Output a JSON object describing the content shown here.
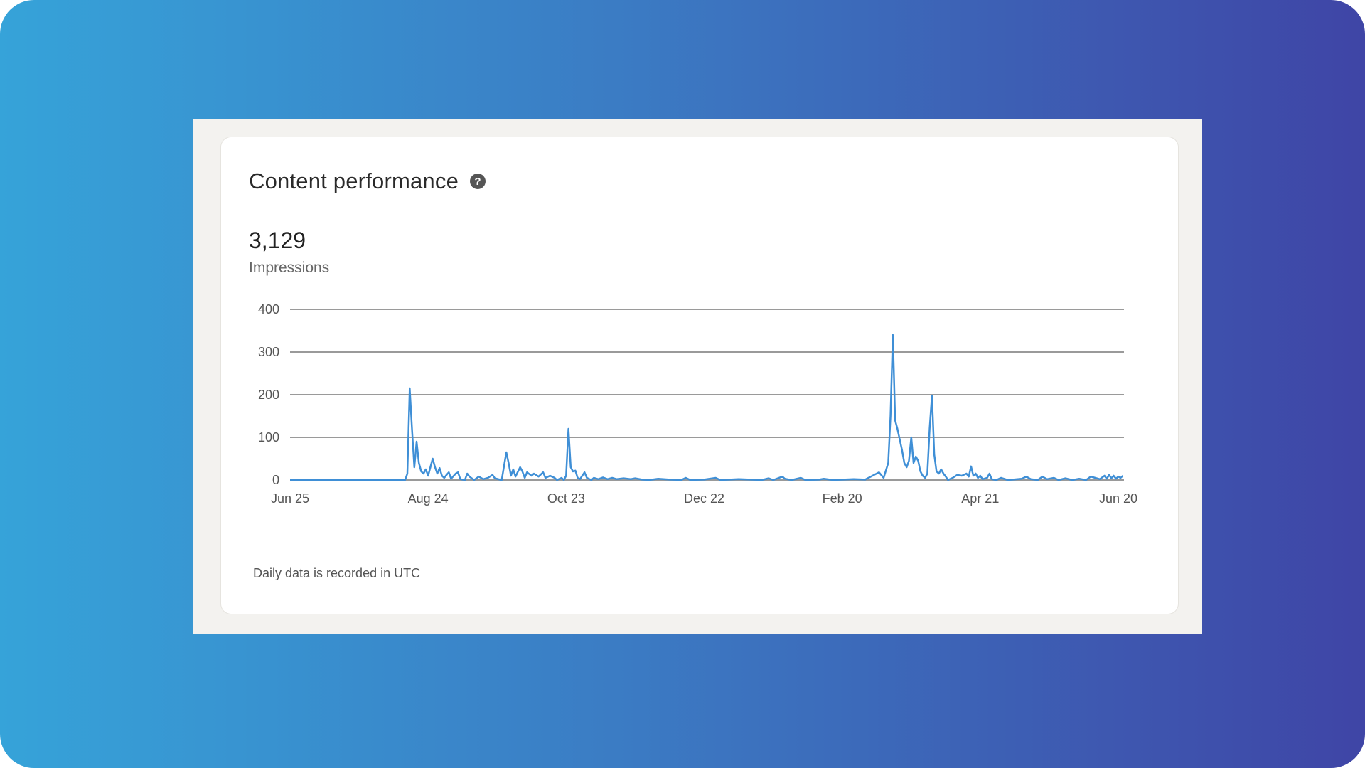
{
  "card": {
    "title": "Content performance",
    "help_icon": "question-circle-icon",
    "total_value": "3,129",
    "metric_label": "Impressions",
    "footnote": "Daily data is recorded in UTC"
  },
  "colors": {
    "line": "#3f8fd6",
    "grid": "#9a9a9a",
    "background_start": "#36a3d9",
    "background_end": "#3f45a6"
  },
  "chart_data": {
    "type": "line",
    "xlabel": "",
    "ylabel": "",
    "ylim": [
      0,
      400
    ],
    "y_ticks": [
      0,
      100,
      200,
      300,
      400
    ],
    "x_tick_labels": [
      "Jun 25",
      "Aug 24",
      "Oct 23",
      "Dec 22",
      "Feb 20",
      "Apr 21",
      "Jun 20"
    ],
    "x_tick_positions": [
      0,
      60,
      120,
      180,
      240,
      300,
      360
    ],
    "grid": true,
    "legend": "none",
    "series": [
      {
        "points": [
          [
            0,
            0
          ],
          [
            50,
            0
          ],
          [
            51,
            15
          ],
          [
            52,
            215
          ],
          [
            53,
            120
          ],
          [
            54,
            30
          ],
          [
            55,
            90
          ],
          [
            56,
            40
          ],
          [
            57,
            20
          ],
          [
            58,
            15
          ],
          [
            59,
            25
          ],
          [
            60,
            10
          ],
          [
            61,
            30
          ],
          [
            62,
            50
          ],
          [
            63,
            30
          ],
          [
            64,
            15
          ],
          [
            65,
            28
          ],
          [
            66,
            10
          ],
          [
            67,
            5
          ],
          [
            68,
            12
          ],
          [
            69,
            18
          ],
          [
            70,
            3
          ],
          [
            72,
            15
          ],
          [
            73,
            18
          ],
          [
            74,
            2
          ],
          [
            76,
            0
          ],
          [
            77,
            15
          ],
          [
            78,
            8
          ],
          [
            80,
            0
          ],
          [
            82,
            8
          ],
          [
            84,
            2
          ],
          [
            86,
            5
          ],
          [
            88,
            12
          ],
          [
            89,
            4
          ],
          [
            92,
            0
          ],
          [
            94,
            65
          ],
          [
            95,
            40
          ],
          [
            96,
            10
          ],
          [
            97,
            25
          ],
          [
            98,
            8
          ],
          [
            100,
            30
          ],
          [
            101,
            20
          ],
          [
            102,
            5
          ],
          [
            103,
            18
          ],
          [
            105,
            10
          ],
          [
            106,
            15
          ],
          [
            108,
            8
          ],
          [
            110,
            18
          ],
          [
            111,
            5
          ],
          [
            113,
            10
          ],
          [
            115,
            5
          ],
          [
            116,
            0
          ],
          [
            118,
            5
          ],
          [
            119,
            0
          ],
          [
            120,
            10
          ],
          [
            121,
            120
          ],
          [
            122,
            30
          ],
          [
            123,
            20
          ],
          [
            124,
            22
          ],
          [
            125,
            5
          ],
          [
            126,
            2
          ],
          [
            128,
            18
          ],
          [
            129,
            5
          ],
          [
            131,
            0
          ],
          [
            132,
            5
          ],
          [
            134,
            2
          ],
          [
            136,
            6
          ],
          [
            138,
            2
          ],
          [
            140,
            5
          ],
          [
            142,
            2
          ],
          [
            145,
            4
          ],
          [
            148,
            2
          ],
          [
            150,
            4
          ],
          [
            153,
            1
          ],
          [
            156,
            0
          ],
          [
            160,
            3
          ],
          [
            165,
            1
          ],
          [
            170,
            0
          ],
          [
            172,
            5
          ],
          [
            174,
            0
          ],
          [
            180,
            1
          ],
          [
            185,
            5
          ],
          [
            187,
            0
          ],
          [
            195,
            2
          ],
          [
            205,
            0
          ],
          [
            208,
            4
          ],
          [
            210,
            0
          ],
          [
            214,
            8
          ],
          [
            215,
            3
          ],
          [
            218,
            0
          ],
          [
            222,
            5
          ],
          [
            224,
            0
          ],
          [
            230,
            1
          ],
          [
            232,
            3
          ],
          [
            236,
            0
          ],
          [
            245,
            2
          ],
          [
            250,
            1
          ],
          [
            256,
            18
          ],
          [
            258,
            5
          ],
          [
            260,
            40
          ],
          [
            261,
            150
          ],
          [
            262,
            340
          ],
          [
            263,
            140
          ],
          [
            264,
            120
          ],
          [
            266,
            70
          ],
          [
            267,
            40
          ],
          [
            268,
            30
          ],
          [
            269,
            45
          ],
          [
            270,
            100
          ],
          [
            271,
            40
          ],
          [
            272,
            55
          ],
          [
            273,
            45
          ],
          [
            274,
            20
          ],
          [
            275,
            10
          ],
          [
            276,
            5
          ],
          [
            277,
            15
          ],
          [
            278,
            120
          ],
          [
            279,
            198
          ],
          [
            280,
            60
          ],
          [
            281,
            20
          ],
          [
            282,
            15
          ],
          [
            283,
            25
          ],
          [
            284,
            15
          ],
          [
            285,
            8
          ],
          [
            286,
            0
          ],
          [
            288,
            5
          ],
          [
            290,
            12
          ],
          [
            292,
            10
          ],
          [
            294,
            15
          ],
          [
            295,
            8
          ],
          [
            296,
            32
          ],
          [
            297,
            10
          ],
          [
            298,
            15
          ],
          [
            299,
            5
          ],
          [
            300,
            10
          ],
          [
            301,
            2
          ],
          [
            303,
            5
          ],
          [
            304,
            15
          ],
          [
            305,
            2
          ],
          [
            307,
            0
          ],
          [
            309,
            5
          ],
          [
            312,
            0
          ],
          [
            318,
            3
          ],
          [
            320,
            8
          ],
          [
            322,
            2
          ],
          [
            325,
            0
          ],
          [
            327,
            8
          ],
          [
            329,
            2
          ],
          [
            332,
            5
          ],
          [
            334,
            0
          ],
          [
            337,
            4
          ],
          [
            340,
            0
          ],
          [
            343,
            3
          ],
          [
            346,
            0
          ],
          [
            348,
            8
          ],
          [
            350,
            5
          ],
          [
            352,
            2
          ],
          [
            354,
            10
          ],
          [
            355,
            3
          ],
          [
            356,
            12
          ],
          [
            357,
            4
          ],
          [
            358,
            10
          ],
          [
            359,
            3
          ],
          [
            360,
            8
          ],
          [
            361,
            5
          ],
          [
            362,
            10
          ]
        ]
      }
    ]
  }
}
